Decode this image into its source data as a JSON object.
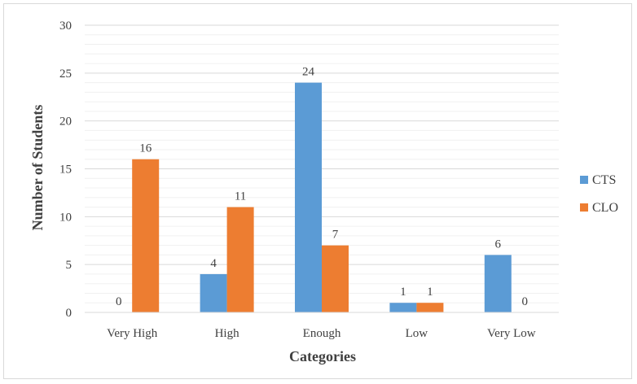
{
  "chart_data": {
    "type": "bar",
    "title": "",
    "xlabel": "Categories",
    "ylabel": "Number of Students",
    "categories": [
      "Very High",
      "High",
      "Enough",
      "Low",
      "Very Low"
    ],
    "series": [
      {
        "name": "CTS",
        "values": [
          0,
          4,
          24,
          1,
          6
        ],
        "color": "#5b9bd5"
      },
      {
        "name": "CLO",
        "values": [
          16,
          11,
          7,
          1,
          0
        ],
        "color": "#ed7d31"
      }
    ],
    "ylim": [
      0,
      30
    ],
    "yticks": [
      0,
      5,
      10,
      15,
      20,
      25,
      30
    ],
    "grid": true,
    "data_labels": true,
    "legend_position": "right"
  }
}
